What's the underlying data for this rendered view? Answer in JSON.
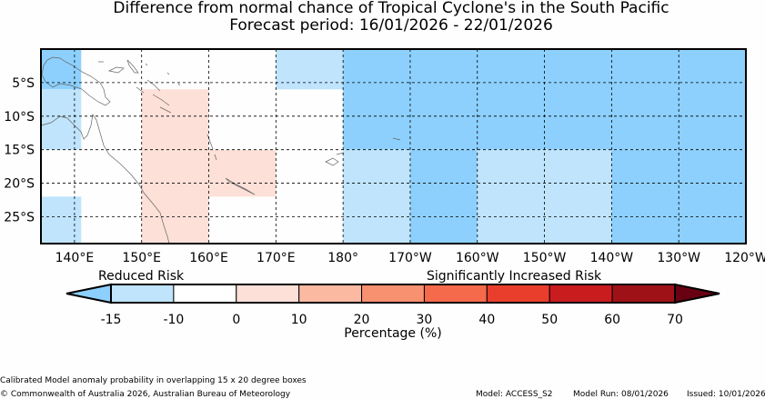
{
  "title": "Difference from normal chance of Tropical Cyclone's in the South Pacific",
  "subtitle": "Forecast period: 16/01/2026 - 22/01/2026",
  "map": {
    "lon_range": [
      135,
      240
    ],
    "lat_range": [
      -29,
      0
    ],
    "lon_ticks": [
      140,
      150,
      160,
      170,
      180,
      190,
      200,
      210,
      220,
      230,
      240
    ],
    "lon_tick_labels": [
      "140°E",
      "150°E",
      "160°E",
      "170°E",
      "180°",
      "170°W",
      "160°W",
      "150°W",
      "140°W",
      "130°W",
      "120°W"
    ],
    "lat_ticks": [
      -5,
      -10,
      -15,
      -20,
      -25
    ],
    "lat_tick_labels": [
      "5°S",
      "10°S",
      "15°S",
      "20°S",
      "25°S"
    ],
    "gridlines": true,
    "cells": [
      {
        "lon": [
          135,
          141
        ],
        "lat": [
          -6,
          0
        ],
        "class": "-15"
      },
      {
        "lon": [
          135,
          141
        ],
        "lat": [
          -15,
          -6
        ],
        "class": "-10"
      },
      {
        "lon": [
          135,
          141
        ],
        "lat": [
          -29,
          -22
        ],
        "class": "-10"
      },
      {
        "lon": [
          150,
          160
        ],
        "lat": [
          -29,
          -6
        ],
        "class": "0"
      },
      {
        "lon": [
          160,
          170
        ],
        "lat": [
          -22,
          -15
        ],
        "class": "0"
      },
      {
        "lon": [
          170,
          180
        ],
        "lat": [
          -6,
          0
        ],
        "class": "-10"
      },
      {
        "lon": [
          180,
          240
        ],
        "lat": [
          -15,
          0
        ],
        "class": "-15"
      },
      {
        "lon": [
          180,
          190
        ],
        "lat": [
          -29,
          -15
        ],
        "class": "-10"
      },
      {
        "lon": [
          190,
          200
        ],
        "lat": [
          -29,
          -15
        ],
        "class": "-15"
      },
      {
        "lon": [
          200,
          220
        ],
        "lat": [
          -29,
          -15
        ],
        "class": "-10"
      },
      {
        "lon": [
          220,
          240
        ],
        "lat": [
          -29,
          -15
        ],
        "class": "-15"
      }
    ]
  },
  "colorbar": {
    "left_label": "Reduced Risk",
    "right_label": "Significantly Increased Risk",
    "axis_label": "Percentage (%)",
    "ticks": [
      "-15",
      "-10",
      "0",
      "10",
      "20",
      "30",
      "40",
      "50",
      "60",
      "70"
    ],
    "colors": [
      "#bfe4fc",
      "#ffffff",
      "#fde0d8",
      "#fbb9a2",
      "#f8916f",
      "#f46a4a",
      "#ea3e2c",
      "#c91c1f",
      "#9e1217"
    ],
    "under_color": "#8dd0fd",
    "over_color": "#670111"
  },
  "class_colors": {
    "-15": "#8dd0fd",
    "-10": "#bfe4fc",
    "0": "#fde0d8"
  },
  "footer": {
    "note": "Calibrated Model anomaly probability in overlapping 15 x 20 degree boxes",
    "copyright": "© Commonwealth of Australia 2026, Australian Bureau of Meteorology",
    "model": "Model: ACCESS_S2",
    "model_run": "Model Run: 08/01/2026",
    "issued": "Issued: 10/01/2026"
  }
}
